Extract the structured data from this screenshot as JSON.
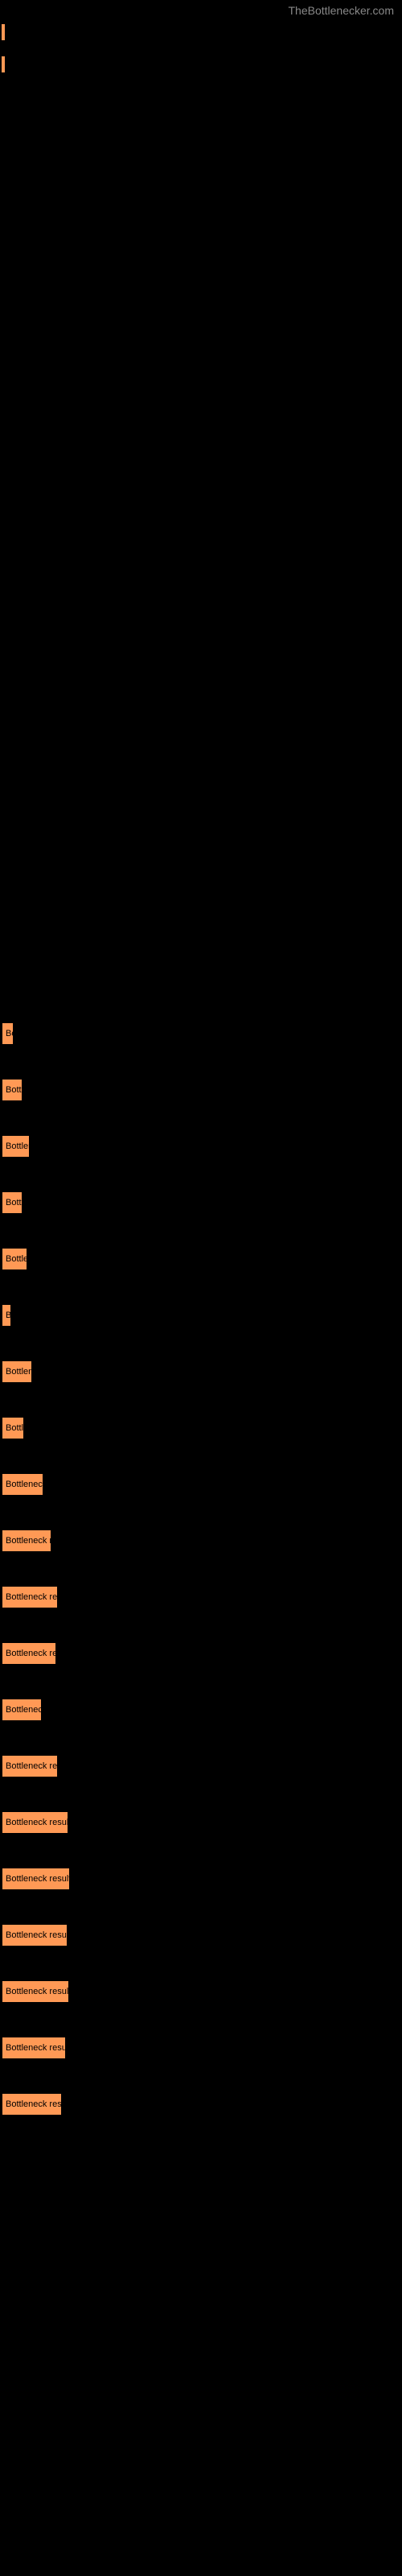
{
  "watermark": "TheBottlenecker.com",
  "top_ticks": [
    {
      "height": 20
    },
    {
      "height": 20
    }
  ],
  "bars": [
    {
      "width": 15,
      "text": "Bo",
      "label": ""
    },
    {
      "width": 26,
      "text": "Bott",
      "label": ""
    },
    {
      "width": 35,
      "text": "Bottlene",
      "label": ""
    },
    {
      "width": 26,
      "text": "Bott",
      "label": ""
    },
    {
      "width": 32,
      "text": "Bottle",
      "label": ""
    },
    {
      "width": 12,
      "text": "B",
      "label": ""
    },
    {
      "width": 38,
      "text": "Bottlene",
      "label": ""
    },
    {
      "width": 28,
      "text": "Bottl",
      "label": ""
    },
    {
      "width": 52,
      "text": "Bottleneck r",
      "label": ""
    },
    {
      "width": 62,
      "text": "Bottleneck re",
      "label": ""
    },
    {
      "width": 70,
      "text": "Bottleneck resu",
      "label": ""
    },
    {
      "width": 68,
      "text": "Bottleneck res",
      "label": ""
    },
    {
      "width": 50,
      "text": "Bottleneck",
      "label": ""
    },
    {
      "width": 70,
      "text": "Bottleneck resu",
      "label": ""
    },
    {
      "width": 83,
      "text": "Bottleneck result",
      "label": ""
    },
    {
      "width": 85,
      "text": "Bottleneck result",
      "label": ""
    },
    {
      "width": 82,
      "text": "Bottleneck result",
      "label": ""
    },
    {
      "width": 84,
      "text": "Bottleneck result",
      "label": ""
    },
    {
      "width": 80,
      "text": "Bottleneck result",
      "label": ""
    },
    {
      "width": 75,
      "text": "Bottleneck resul",
      "label": ""
    }
  ],
  "colors": {
    "bar_fill": "#ff9955",
    "bar_text": "#000000",
    "background": "#000000",
    "watermark": "#888888"
  }
}
